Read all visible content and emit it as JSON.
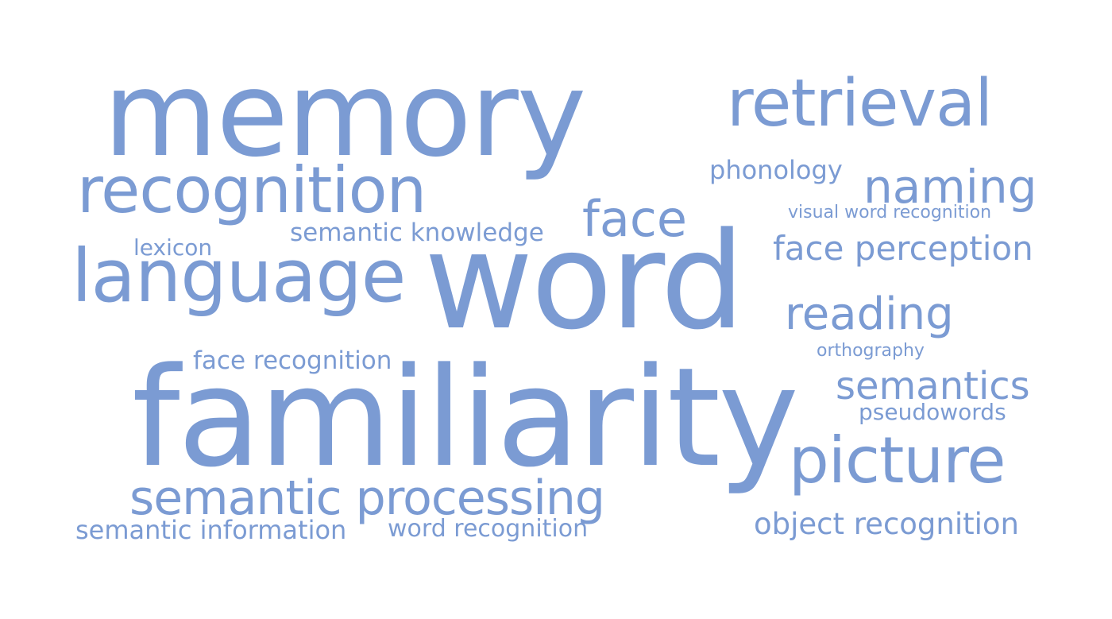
{
  "color": "#7b9bd3",
  "words": [
    {
      "text": "memory",
      "weight": 1.0
    },
    {
      "text": "retrieval",
      "weight": 0.48
    },
    {
      "text": "recognition",
      "weight": 0.55
    },
    {
      "text": "phonology",
      "weight": 0.22
    },
    {
      "text": "naming",
      "weight": 0.38
    },
    {
      "text": "face",
      "weight": 0.42
    },
    {
      "text": "visual word recognition",
      "weight": 0.17
    },
    {
      "text": "semantic knowledge",
      "weight": 0.24
    },
    {
      "text": "lexicon",
      "weight": 0.2
    },
    {
      "text": "face perception",
      "weight": 0.3
    },
    {
      "text": "language",
      "weight": 0.62
    },
    {
      "text": "word",
      "weight": 1.0
    },
    {
      "text": "reading",
      "weight": 0.38
    },
    {
      "text": "orthography",
      "weight": 0.16
    },
    {
      "text": "face recognition",
      "weight": 0.22
    },
    {
      "text": "semantics",
      "weight": 0.33
    },
    {
      "text": "pseudowords",
      "weight": 0.2
    },
    {
      "text": "familiarity",
      "weight": 1.0
    },
    {
      "text": "picture",
      "weight": 0.55
    },
    {
      "text": "semantic processing",
      "weight": 0.45
    },
    {
      "text": "semantic information",
      "weight": 0.24
    },
    {
      "text": "word recognition",
      "weight": 0.24
    },
    {
      "text": "object recognition",
      "weight": 0.28
    }
  ]
}
